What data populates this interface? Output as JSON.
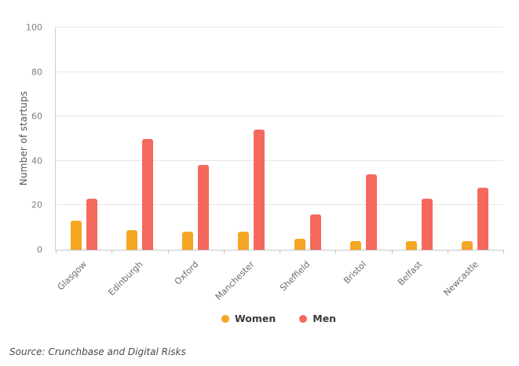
{
  "chart_data": {
    "type": "bar",
    "title": "",
    "categories": [
      "Glasgow",
      "Edinburgh",
      "Oxford",
      "Manchester",
      "Sheffield",
      "Bristol",
      "Belfast",
      "Newcastle"
    ],
    "series": [
      {
        "name": "Women",
        "color": "#F5A623",
        "values": [
          13,
          9,
          8,
          8,
          5,
          4,
          4,
          4
        ]
      },
      {
        "name": "Men",
        "color": "#F4695C",
        "values": [
          23,
          50,
          38,
          54,
          16,
          34,
          23,
          28
        ]
      }
    ],
    "xlabel": "",
    "ylabel": "Number of startups",
    "ylim": [
      0,
      100
    ],
    "yticks": [
      0,
      20,
      40,
      60,
      80,
      100
    ],
    "grid": true,
    "legend_position": "bottom"
  },
  "source_note": "Source: Crunchbase and Digital Risks"
}
